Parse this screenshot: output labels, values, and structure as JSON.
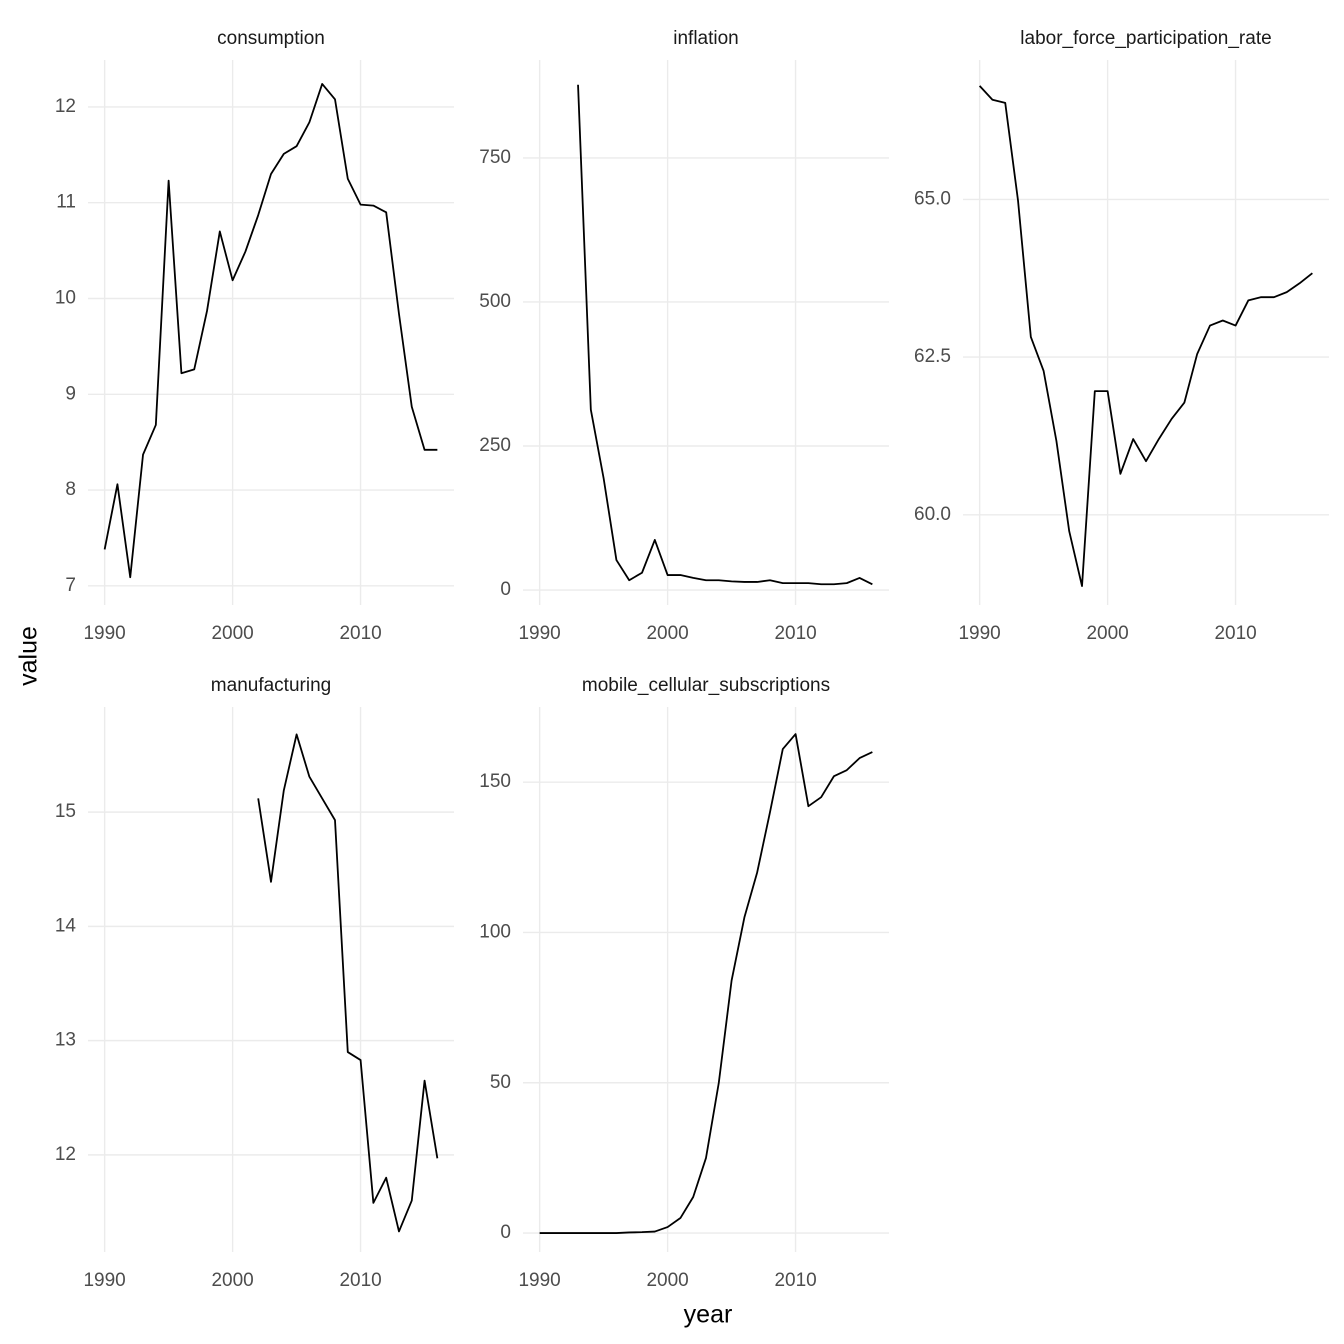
{
  "xlabel": "year",
  "ylabel": "value",
  "chart_data": [
    {
      "type": "line",
      "title": "consumption",
      "color": "#000000",
      "grid": true,
      "x": [
        1990,
        1991,
        1992,
        1993,
        1994,
        1995,
        1996,
        1997,
        1998,
        1999,
        2000,
        2001,
        2002,
        2003,
        2004,
        2005,
        2006,
        2007,
        2008,
        2009,
        2010,
        2011,
        2012,
        2013,
        2014,
        2015,
        2016
      ],
      "values": [
        7.38,
        8.06,
        7.09,
        8.37,
        8.68,
        11.23,
        9.22,
        9.26,
        9.87,
        10.7,
        10.19,
        10.49,
        10.87,
        11.3,
        11.51,
        11.59,
        11.84,
        12.24,
        12.08,
        11.25,
        10.98,
        10.97,
        10.9,
        9.84,
        8.87,
        8.42,
        8.42
      ],
      "xlim": [
        1988.7,
        2017.3
      ],
      "xticks": [
        1990,
        2000,
        2010
      ],
      "ylim": [
        6.8,
        12.49
      ],
      "yticks": [
        7,
        8,
        9,
        10,
        11,
        12
      ]
    },
    {
      "type": "line",
      "title": "inflation",
      "color": "#000000",
      "grid": true,
      "x": [
        1990,
        1991,
        1992,
        1993,
        1994,
        1995,
        1996,
        1997,
        1998,
        1999,
        2000,
        2001,
        2002,
        2003,
        2004,
        2005,
        2006,
        2007,
        2008,
        2009,
        2010,
        2011,
        2012,
        2013,
        2014,
        2015,
        2016
      ],
      "values": [
        null,
        null,
        null,
        877,
        313,
        194,
        52,
        17,
        30,
        87,
        26,
        26,
        21,
        17,
        17,
        15,
        14,
        14,
        17,
        12,
        12,
        12,
        10,
        10,
        12,
        21,
        10
      ],
      "xlim": [
        1988.7,
        2017.3
      ],
      "xticks": [
        1990,
        2000,
        2010
      ],
      "ylim": [
        -26,
        920
      ],
      "yticks": [
        0,
        250,
        500,
        750
      ]
    },
    {
      "type": "line",
      "title": "labor_force_participation_rate",
      "color": "#000000",
      "grid": true,
      "x": [
        1990,
        1991,
        1992,
        1993,
        1994,
        1995,
        1996,
        1997,
        1998,
        1999,
        2000,
        2001,
        2002,
        2003,
        2004,
        2005,
        2006,
        2007,
        2008,
        2009,
        2010,
        2011,
        2012,
        2013,
        2014,
        2015,
        2016
      ],
      "values": [
        66.8,
        66.58,
        66.53,
        64.98,
        62.82,
        62.28,
        61.17,
        59.74,
        58.87,
        61.96,
        61.96,
        60.65,
        61.2,
        60.85,
        61.2,
        61.52,
        61.78,
        62.55,
        63.0,
        63.08,
        63.0,
        63.4,
        63.45,
        63.45,
        63.53,
        63.67,
        63.83
      ],
      "xlim": [
        1988.7,
        2017.3
      ],
      "xticks": [
        1990,
        2000,
        2010
      ],
      "ylim": [
        58.57,
        67.21
      ],
      "yticks": [
        {
          "value": 60,
          "label": "60.0"
        },
        {
          "value": 62.5,
          "label": "62.5"
        },
        {
          "value": 65,
          "label": "65.0"
        }
      ]
    },
    {
      "type": "line",
      "title": "manufacturing",
      "color": "#000000",
      "grid": true,
      "x": [
        1990,
        1991,
        1992,
        1993,
        1994,
        1995,
        1996,
        1997,
        1998,
        1999,
        2000,
        2001,
        2002,
        2003,
        2004,
        2005,
        2006,
        2007,
        2008,
        2009,
        2010,
        2011,
        2012,
        2013,
        2014,
        2015,
        2016
      ],
      "values": [
        null,
        null,
        null,
        null,
        null,
        null,
        null,
        null,
        null,
        null,
        null,
        null,
        15.12,
        14.39,
        15.19,
        15.68,
        15.31,
        15.12,
        14.93,
        12.9,
        12.83,
        11.58,
        11.8,
        11.33,
        11.6,
        12.65,
        11.97
      ],
      "xlim": [
        1988.7,
        2017.3
      ],
      "xticks": [
        1990,
        2000,
        2010
      ],
      "ylim": [
        11.15,
        15.92
      ],
      "yticks": [
        12,
        13,
        14,
        15
      ]
    },
    {
      "type": "line",
      "title": "mobile_cellular_subscriptions",
      "color": "#000000",
      "grid": true,
      "x": [
        1990,
        1991,
        1992,
        1993,
        1994,
        1995,
        1996,
        1997,
        1998,
        1999,
        2000,
        2001,
        2002,
        2003,
        2004,
        2005,
        2006,
        2007,
        2008,
        2009,
        2010,
        2011,
        2012,
        2013,
        2014,
        2015,
        2016
      ],
      "values": [
        0,
        0,
        0,
        0,
        0,
        0,
        0,
        0.2,
        0.3,
        0.5,
        2,
        5,
        12,
        25,
        50,
        84,
        105,
        120,
        140,
        161,
        166,
        142,
        145,
        152,
        154,
        158,
        160
      ],
      "xlim": [
        1988.7,
        2017.3
      ],
      "xticks": [
        1990,
        2000,
        2010
      ],
      "ylim": [
        -6.3,
        175
      ],
      "yticks": [
        0,
        50,
        100,
        150
      ]
    }
  ]
}
